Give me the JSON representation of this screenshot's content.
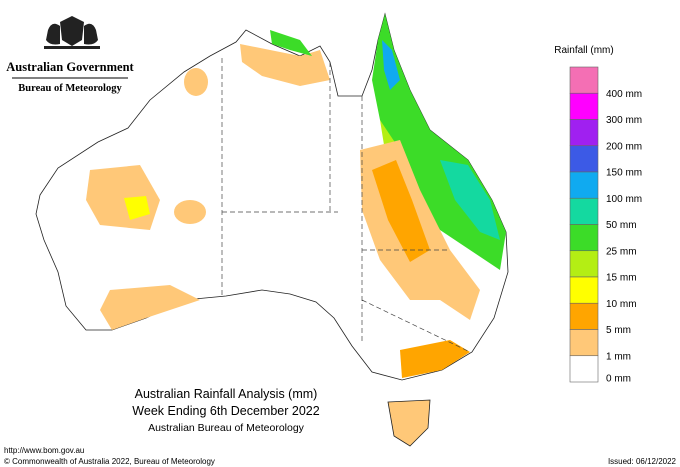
{
  "header": {
    "government": "Australian Government",
    "bureau": "Bureau of Meteorology"
  },
  "legend": {
    "title": "Rainfall (mm)",
    "colors": [
      "#f46fb4",
      "#ff00ff",
      "#a020f0",
      "#3c5ae6",
      "#10aaf0",
      "#14d9a0",
      "#3cdc28",
      "#b4ee14",
      "#ffff00",
      "#ffa500",
      "#ffc878",
      "#ffffff"
    ],
    "labels": [
      "400 mm",
      "300 mm",
      "200 mm",
      "150 mm",
      "100 mm",
      "50 mm",
      "25 mm",
      "15 mm",
      "10 mm",
      "5 mm",
      "1 mm",
      "0 mm"
    ]
  },
  "map_title": {
    "lines": [
      "Australian Rainfall Analysis (mm)",
      "Week Ending 6th December 2022",
      "Australian Bureau of Meteorology"
    ]
  },
  "footer": {
    "url": "http://www.bom.gov.au",
    "copyright": "© Commonwealth of Australia 2022, Bureau of Meteorology",
    "issued": "Issued: 06/12/2022"
  }
}
